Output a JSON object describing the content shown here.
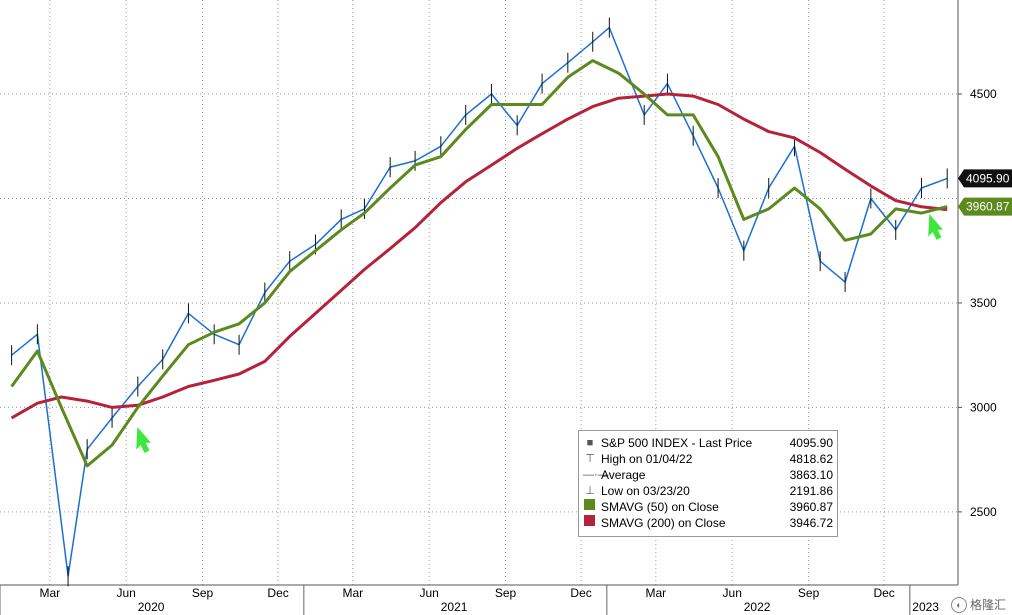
{
  "chart_data": {
    "type": "line",
    "title": "",
    "ylim": [
      2150,
      4950
    ],
    "y_ticks": [
      2500,
      3000,
      3500,
      4500
    ],
    "x_tick_months": [
      "Mar",
      "Jun",
      "Sep",
      "Dec",
      "Mar",
      "Jun",
      "Sep",
      "Dec",
      "Mar",
      "Jun",
      "Sep",
      "Dec"
    ],
    "x_years": [
      "2020",
      "2021",
      "2022",
      "2023"
    ],
    "grid": true,
    "legend_position": "bottom-right",
    "price_series": {
      "name": "S&P 500 INDEX - Last Price",
      "color": "#1a6fd6",
      "x": [
        "2020-01",
        "2020-02",
        "2020-03-23",
        "2020-04",
        "2020-05",
        "2020-06",
        "2020-07",
        "2020-08",
        "2020-09",
        "2020-10",
        "2020-11",
        "2020-12",
        "2021-01",
        "2021-02",
        "2021-03",
        "2021-04",
        "2021-05",
        "2021-06",
        "2021-07",
        "2021-08",
        "2021-09",
        "2021-10",
        "2021-11",
        "2021-12",
        "2022-01-04",
        "2022-02",
        "2022-03",
        "2022-04",
        "2022-05",
        "2022-06",
        "2022-07",
        "2022-08",
        "2022-09",
        "2022-10",
        "2022-11",
        "2022-12",
        "2023-01",
        "2023-02"
      ],
      "values": [
        3250,
        3350,
        2192,
        2800,
        2950,
        3100,
        3230,
        3450,
        3350,
        3300,
        3550,
        3700,
        3780,
        3900,
        3950,
        4150,
        4180,
        4250,
        4400,
        4500,
        4350,
        4550,
        4650,
        4750,
        4818,
        4400,
        4550,
        4300,
        4050,
        3750,
        4050,
        4250,
        3700,
        3600,
        4000,
        3850,
        4050,
        4096
      ]
    },
    "sma50": {
      "name": "SMAVG (50) on Close",
      "color": "#5c8a1e",
      "x": [
        "2020-01",
        "2020-02",
        "2020-03",
        "2020-04",
        "2020-05",
        "2020-06",
        "2020-07",
        "2020-08",
        "2020-09",
        "2020-10",
        "2020-11",
        "2020-12",
        "2021-01",
        "2021-02",
        "2021-03",
        "2021-04",
        "2021-05",
        "2021-06",
        "2021-07",
        "2021-08",
        "2021-09",
        "2021-10",
        "2021-11",
        "2021-12",
        "2022-01",
        "2022-02",
        "2022-03",
        "2022-04",
        "2022-05",
        "2022-06",
        "2022-07",
        "2022-08",
        "2022-09",
        "2022-10",
        "2022-11",
        "2022-12",
        "2023-01",
        "2023-02"
      ],
      "values": [
        3100,
        3270,
        3000,
        2720,
        2820,
        3000,
        3150,
        3300,
        3360,
        3400,
        3500,
        3650,
        3750,
        3850,
        3930,
        4050,
        4160,
        4200,
        4330,
        4450,
        4450,
        4450,
        4580,
        4660,
        4600,
        4500,
        4400,
        4400,
        4200,
        3900,
        3950,
        4050,
        3950,
        3800,
        3830,
        3950,
        3930,
        3961
      ]
    },
    "sma200": {
      "name": "SMAVG (200) on Close",
      "color": "#b5223a",
      "x": [
        "2020-01",
        "2020-02",
        "2020-03",
        "2020-04",
        "2020-05",
        "2020-06",
        "2020-07",
        "2020-08",
        "2020-09",
        "2020-10",
        "2020-11",
        "2020-12",
        "2021-01",
        "2021-02",
        "2021-03",
        "2021-04",
        "2021-05",
        "2021-06",
        "2021-07",
        "2021-08",
        "2021-09",
        "2021-10",
        "2021-11",
        "2021-12",
        "2022-01",
        "2022-02",
        "2022-03",
        "2022-04",
        "2022-05",
        "2022-06",
        "2022-07",
        "2022-08",
        "2022-09",
        "2022-10",
        "2022-11",
        "2022-12",
        "2023-01",
        "2023-02"
      ],
      "values": [
        2950,
        3020,
        3050,
        3030,
        3000,
        3010,
        3050,
        3100,
        3130,
        3160,
        3220,
        3340,
        3450,
        3560,
        3660,
        3760,
        3860,
        3980,
        4080,
        4160,
        4240,
        4310,
        4380,
        4440,
        4480,
        4490,
        4500,
        4490,
        4450,
        4380,
        4320,
        4290,
        4220,
        4140,
        4060,
        3990,
        3960,
        3947
      ]
    },
    "last_price_tag": "4095.90",
    "sma50_tag": "3960.87",
    "arrow_color": "#3ce83c"
  },
  "legend": {
    "rows": [
      {
        "symbol": "■",
        "label": "S&P 500 INDEX - Last Price",
        "value": "4095.90"
      },
      {
        "symbol": "⊤",
        "label": "High on 01/04/22",
        "value": "4818.62"
      },
      {
        "symbol": "—·—",
        "label": "Average",
        "value": "3863.10"
      },
      {
        "symbol": "⊥",
        "label": "Low on 03/23/20",
        "value": "2191.86"
      },
      {
        "symbol": "",
        "label": "SMAVG (50)  on Close",
        "value": "3960.87",
        "swatch": "#5c8a1e"
      },
      {
        "symbol": "",
        "label": "SMAVG (200)  on Close",
        "value": "3946.72",
        "swatch": "#b5223a"
      }
    ]
  },
  "watermark": "格隆汇"
}
